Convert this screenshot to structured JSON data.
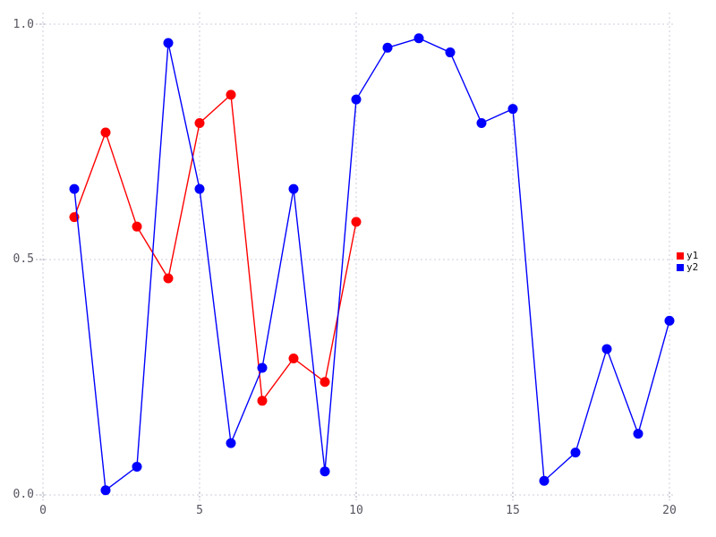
{
  "chart_data": {
    "type": "line",
    "title": "",
    "xlabel": "",
    "ylabel": "",
    "xlim": [
      0,
      20
    ],
    "ylim": [
      0,
      1
    ],
    "grid": "dotted",
    "legend_position": "right",
    "marker": "circle",
    "xticks": {
      "values": [
        0,
        5,
        10,
        15,
        20
      ],
      "labels": [
        "0",
        "5",
        "10",
        "15",
        "20"
      ]
    },
    "yticks": {
      "values": [
        0,
        0.5,
        1.0
      ],
      "labels": [
        "0.0",
        "0.5",
        "1.0"
      ]
    },
    "series": [
      {
        "name": "y1",
        "color": "#ff0000",
        "x": [
          1,
          2,
          3,
          4,
          5,
          6,
          7,
          8,
          9,
          10
        ],
        "values": [
          0.59,
          0.77,
          0.57,
          0.46,
          0.79,
          0.85,
          0.2,
          0.29,
          0.24,
          0.58
        ]
      },
      {
        "name": "y2",
        "color": "#0000ff",
        "x": [
          1,
          2,
          3,
          4,
          5,
          6,
          7,
          8,
          9,
          10,
          11,
          12,
          13,
          14,
          15,
          16,
          17,
          18,
          19,
          20
        ],
        "values": [
          0.65,
          0.01,
          0.06,
          0.96,
          0.65,
          0.11,
          0.27,
          0.65,
          0.05,
          0.84,
          0.95,
          0.97,
          0.94,
          0.79,
          0.82,
          0.03,
          0.09,
          0.31,
          0.13,
          0.37
        ]
      }
    ]
  },
  "colors": {
    "background": "#ffffff",
    "gridline": "#ccccdd",
    "tick_label": "#55555f",
    "legend_text": "#111111"
  }
}
